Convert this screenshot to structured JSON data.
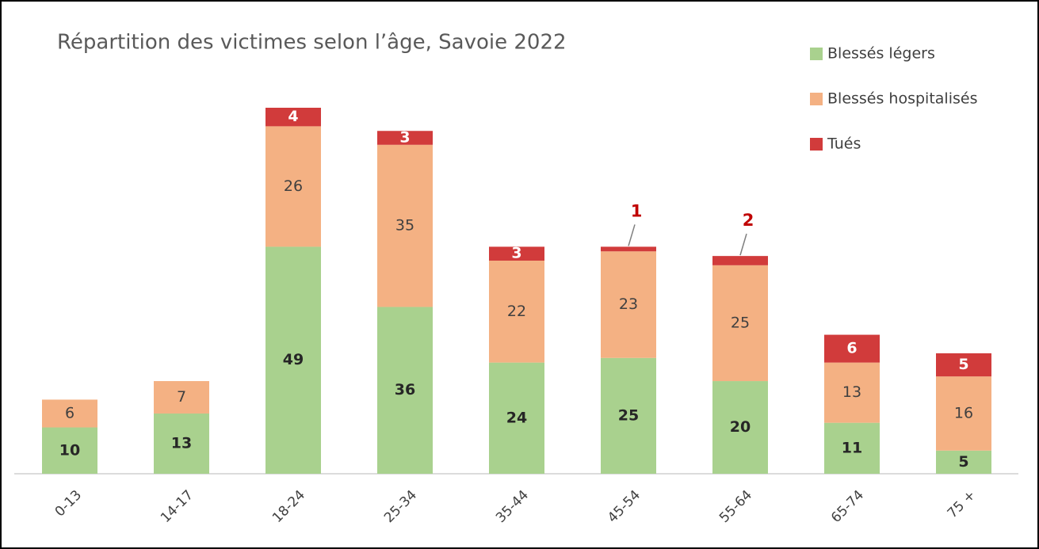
{
  "chart_data": {
    "type": "stacked_bar",
    "title": "Répartition des victimes selon l’âge, Savoie 2022",
    "categories": [
      "0-13",
      "14-17",
      "18-24",
      "25-34",
      "35-44",
      "45-54",
      "55-64",
      "65-74",
      "75 +"
    ],
    "series": [
      {
        "name": "Blessés légers",
        "color": "#a9d18e",
        "values": [
          10,
          13,
          49,
          36,
          24,
          25,
          20,
          11,
          5
        ]
      },
      {
        "name": "Blessés hospitalisés",
        "color": "#f4b183",
        "values": [
          6,
          7,
          26,
          35,
          22,
          23,
          25,
          13,
          16
        ]
      },
      {
        "name": "Tués",
        "color": "#d13b3b",
        "values": [
          null,
          null,
          4,
          3,
          3,
          1,
          2,
          6,
          5
        ]
      }
    ],
    "legend": "top-right"
  }
}
